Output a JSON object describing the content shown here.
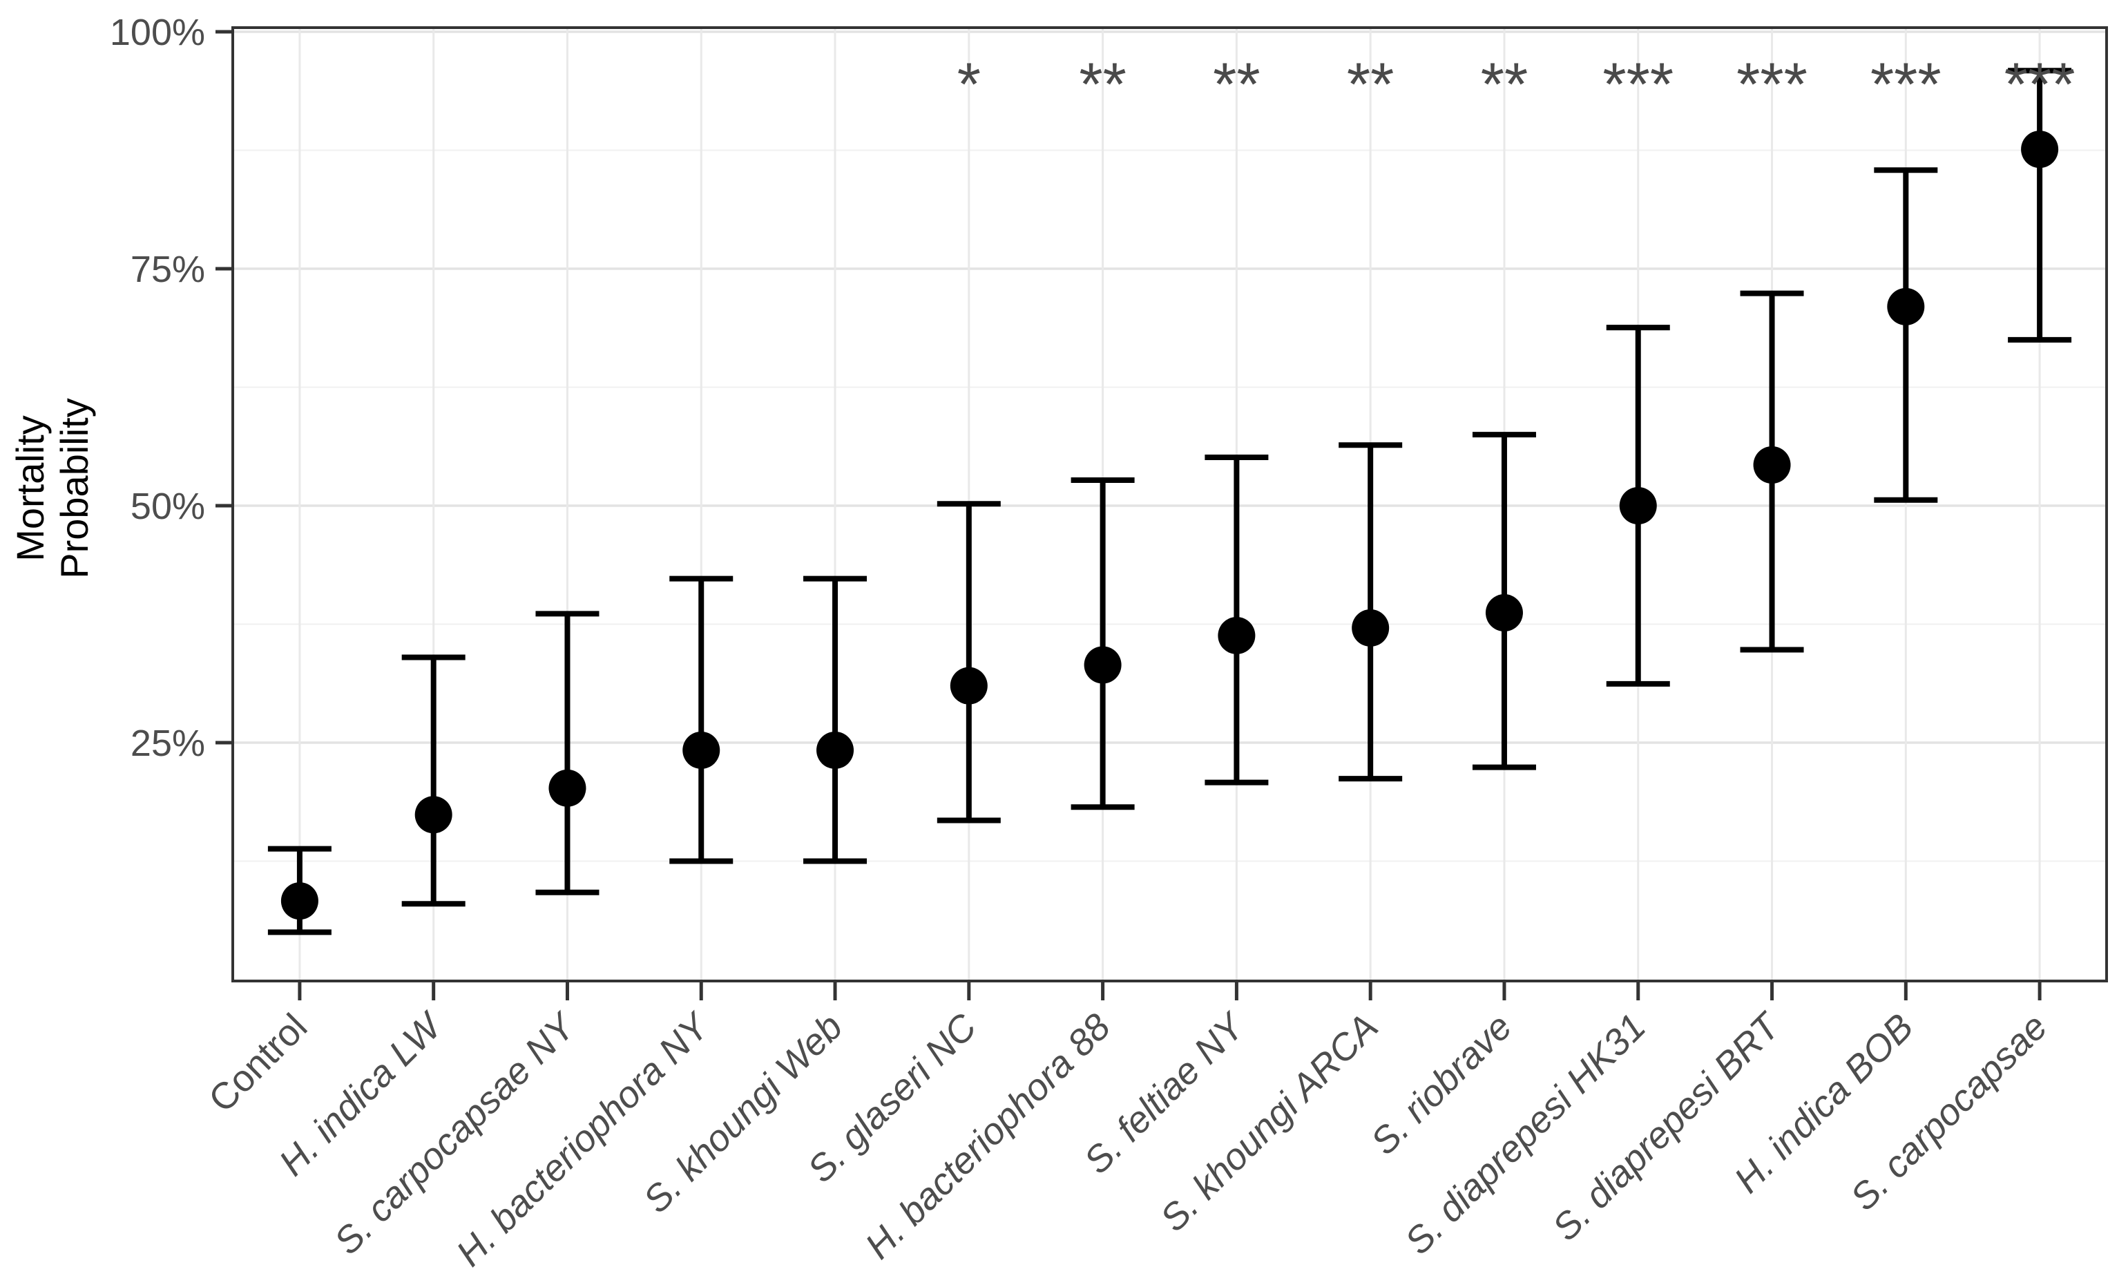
{
  "chart_data": {
    "type": "scatter",
    "subtype": "point-estimate-with-errorbars",
    "title": "",
    "xlabel": "",
    "ylabel_lines": [
      "Mortality",
      "Probability"
    ],
    "legend": false,
    "grid": true,
    "y_axis": {
      "unit": "%",
      "limits": [
        0,
        100.5
      ],
      "ticks": [
        {
          "value": 100,
          "label": "100%"
        },
        {
          "value": 75,
          "label": "75%"
        },
        {
          "value": 50,
          "label": "50%"
        },
        {
          "value": 25,
          "label": "25%"
        }
      ],
      "major_gridlines": [
        25,
        50,
        75,
        100
      ],
      "minor_gridlines": [
        12.5,
        37.5,
        62.5,
        87.5
      ]
    },
    "categories": [
      {
        "label": "Control",
        "italic": false,
        "mean": 8.3,
        "ci_low": 5.0,
        "ci_high": 13.8,
        "significance": ""
      },
      {
        "label": "H. indica LW",
        "italic": true,
        "mean": 17.4,
        "ci_low": 8.0,
        "ci_high": 34.0,
        "significance": ""
      },
      {
        "label": "S. carpocapsae NY",
        "italic": true,
        "mean": 20.2,
        "ci_low": 9.2,
        "ci_high": 38.6,
        "significance": ""
      },
      {
        "label": "H. bacteriophora NY",
        "italic": true,
        "mean": 24.2,
        "ci_low": 12.5,
        "ci_high": 42.3,
        "significance": ""
      },
      {
        "label": "S. khoungi Web",
        "italic": true,
        "mean": 24.2,
        "ci_low": 12.5,
        "ci_high": 42.3,
        "significance": ""
      },
      {
        "label": "S. glaseri NC",
        "italic": true,
        "mean": 31.0,
        "ci_low": 16.8,
        "ci_high": 50.2,
        "significance": "*"
      },
      {
        "label": "H. bacteriophora 88",
        "italic": true,
        "mean": 33.2,
        "ci_low": 18.2,
        "ci_high": 52.7,
        "significance": "**"
      },
      {
        "label": "S. feltiae NY",
        "italic": true,
        "mean": 36.3,
        "ci_low": 20.8,
        "ci_high": 55.1,
        "significance": "**"
      },
      {
        "label": "S. khoungi ARCA",
        "italic": true,
        "mean": 37.1,
        "ci_low": 21.2,
        "ci_high": 56.4,
        "significance": "**"
      },
      {
        "label": "S. riobrave",
        "italic": true,
        "mean": 38.7,
        "ci_low": 22.4,
        "ci_high": 57.5,
        "significance": "**"
      },
      {
        "label": "S. diaprepesi HK31",
        "italic": true,
        "mean": 50.0,
        "ci_low": 31.2,
        "ci_high": 68.8,
        "significance": "***"
      },
      {
        "label": "S. diaprepesi BRT",
        "italic": true,
        "mean": 54.3,
        "ci_low": 34.8,
        "ci_high": 72.4,
        "significance": "***"
      },
      {
        "label": "H. indica BOB",
        "italic": true,
        "mean": 71.0,
        "ci_low": 50.6,
        "ci_high": 85.4,
        "significance": "***"
      },
      {
        "label": "S. carpocapsae",
        "italic": true,
        "mean": 87.6,
        "ci_low": 67.5,
        "ci_high": 95.9,
        "significance": "***"
      }
    ],
    "colors": {
      "background": "#ffffff",
      "panel_background": "#ffffff",
      "panel_border": "#333333",
      "gridline_major": "#e3e3e3",
      "gridline_minor": "#f0f0f0",
      "gridline_vertical": "#e9e9e9",
      "point": "#000000",
      "errorbar": "#000000",
      "axis_tick": "#333333",
      "axis_text": "#4d4d4d",
      "axis_title": "#000000",
      "significance_text": "#4a4a4a"
    }
  }
}
